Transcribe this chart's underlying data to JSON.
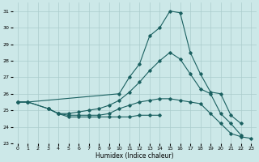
{
  "background_color": "#cce8e8",
  "grid_color": "#aacccc",
  "line_color": "#1a6060",
  "xlabel": "Humidex (Indice chaleur)",
  "ylim": [
    23,
    31.5
  ],
  "xlim": [
    -0.5,
    23.5
  ],
  "yticks": [
    23,
    24,
    25,
    26,
    27,
    28,
    29,
    30,
    31
  ],
  "xticks": [
    0,
    1,
    2,
    3,
    4,
    5,
    6,
    7,
    8,
    9,
    10,
    11,
    12,
    13,
    14,
    15,
    16,
    17,
    18,
    19,
    20,
    21,
    22,
    23
  ],
  "line_top_x": [
    0,
    1,
    10,
    11,
    12,
    13,
    14,
    15,
    16,
    17,
    18,
    19,
    20,
    21,
    22
  ],
  "line_top_y": [
    25.5,
    25.5,
    26.0,
    27.0,
    27.8,
    29.5,
    30.0,
    31.0,
    30.9,
    28.5,
    27.2,
    26.1,
    26.0,
    24.7,
    24.2
  ],
  "line_mid_x": [
    0,
    1,
    3,
    4,
    5,
    6,
    7,
    8,
    9,
    10,
    11,
    12,
    13,
    14,
    15,
    16,
    17,
    18,
    19,
    20,
    21,
    22
  ],
  "line_mid_y": [
    25.5,
    25.5,
    25.1,
    24.8,
    24.8,
    24.9,
    25.0,
    25.1,
    25.3,
    25.6,
    26.1,
    26.7,
    27.4,
    28.0,
    28.5,
    28.1,
    27.2,
    26.3,
    26.0,
    24.8,
    24.2,
    23.5
  ],
  "line_flat_x": [
    0,
    1,
    3,
    4,
    5,
    6,
    7,
    8,
    9,
    10,
    11,
    12,
    13,
    14,
    15,
    16,
    17,
    18,
    19,
    20,
    21,
    22,
    23
  ],
  "line_flat_y": [
    25.5,
    25.5,
    25.1,
    24.8,
    24.7,
    24.7,
    24.7,
    24.7,
    24.8,
    25.1,
    25.3,
    25.5,
    25.6,
    25.7,
    25.7,
    25.6,
    25.5,
    25.4,
    24.8,
    24.2,
    23.6,
    23.4,
    23.3
  ],
  "line_bot_x": [
    3,
    4,
    5,
    6,
    7,
    8,
    9,
    10,
    11,
    12,
    13,
    14
  ],
  "line_bot_y": [
    25.1,
    24.8,
    24.6,
    24.6,
    24.6,
    24.6,
    24.6,
    24.6,
    24.6,
    24.7,
    24.7,
    24.7
  ]
}
